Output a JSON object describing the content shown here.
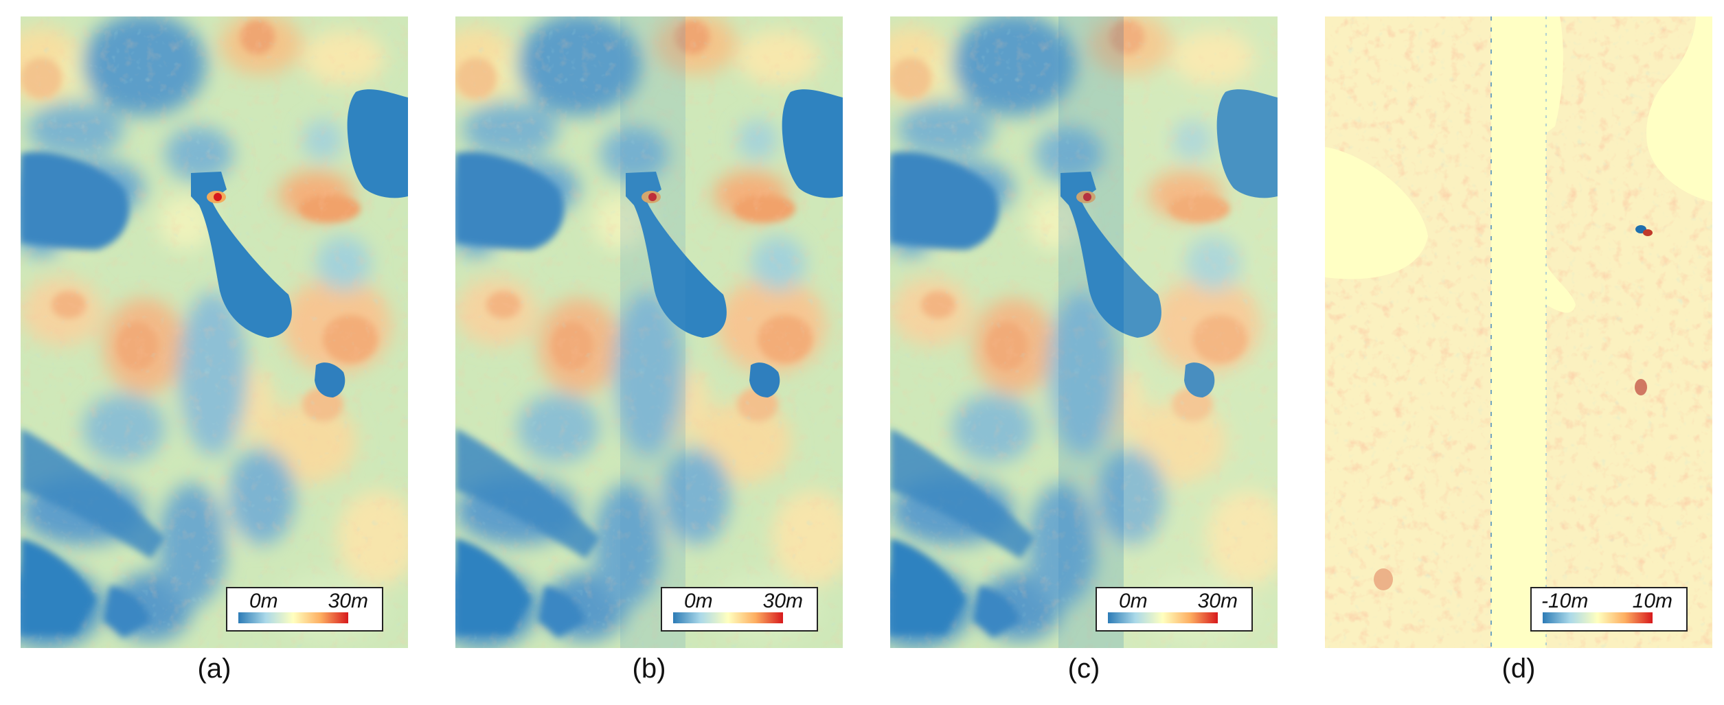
{
  "panels": [
    {
      "caption": "(a)",
      "legend": {
        "min": "0m",
        "max": "30m"
      }
    },
    {
      "caption": "(b)",
      "legend": {
        "min": "0m",
        "max": "30m"
      }
    },
    {
      "caption": "(c)",
      "legend": {
        "min": "0m",
        "max": "30m"
      }
    },
    {
      "caption": "(d)",
      "legend": {
        "min": "-10m",
        "max": "10m"
      }
    }
  ],
  "colorscale": [
    "#2c7bb6",
    "#abd9e9",
    "#ffffbf",
    "#fdae61",
    "#d7191c"
  ]
}
